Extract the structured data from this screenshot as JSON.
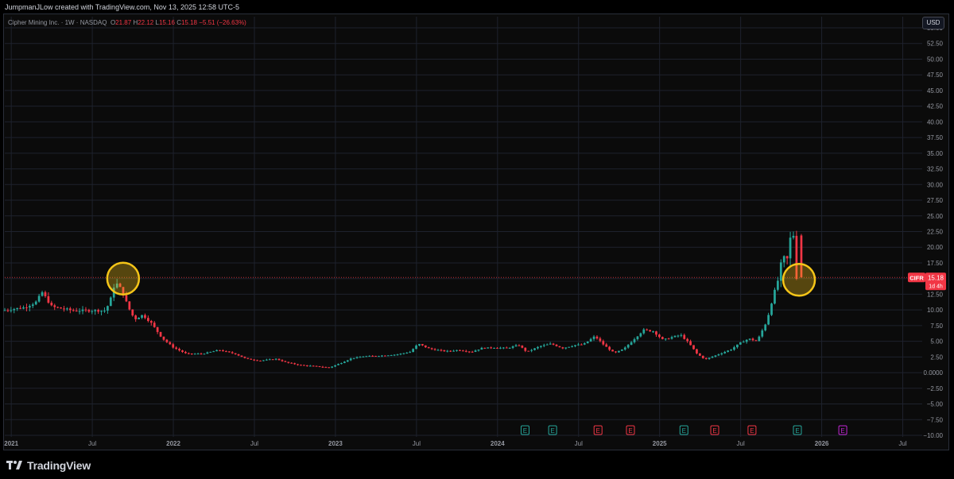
{
  "header": {
    "credit": "JumpmanJLow created with TradingView.com, Nov 13, 2025 12:58 UTC-5"
  },
  "legend": {
    "title": "Cipher Mining Inc. · 1W · NASDAQ",
    "open_label": "O",
    "open": "21.87",
    "high_label": "H",
    "high": "22.12",
    "low_label": "L",
    "low": "15.16",
    "close_label": "C",
    "close": "15.18",
    "change": "−5.51 (−26.63%)"
  },
  "currency_button": "USD",
  "price_tag": {
    "symbol": "CIFR",
    "price": "15.18",
    "countdown": "1d 4h"
  },
  "footer": {
    "brand": "TradingView"
  },
  "colors": {
    "up": "#26a69a",
    "down": "#f23645",
    "highlight": "#f5c518",
    "grid": "#1e222d"
  },
  "chart_data": {
    "type": "candlestick",
    "ylim": [
      -10,
      55
    ],
    "y_ticks": [
      "−10.00",
      "−7.50",
      "−5.00",
      "−2.50",
      "0.0000",
      "2.50",
      "5.00",
      "7.50",
      "10.00",
      "12.50",
      "15.00",
      "17.50",
      "20.00",
      "22.50",
      "25.00",
      "27.50",
      "30.00",
      "32.50",
      "35.00",
      "37.50",
      "40.00",
      "42.50",
      "45.00",
      "47.50",
      "50.00",
      "52.50",
      "55.00"
    ],
    "x_ticks": [
      {
        "label": "2021",
        "t": 2021.0,
        "bold": true
      },
      {
        "label": "Jul",
        "t": 2021.5,
        "bold": false
      },
      {
        "label": "2022",
        "t": 2022.0,
        "bold": true
      },
      {
        "label": "Jul",
        "t": 2022.5,
        "bold": false
      },
      {
        "label": "2023",
        "t": 2023.0,
        "bold": true
      },
      {
        "label": "Jul",
        "t": 2023.5,
        "bold": false
      },
      {
        "label": "2024",
        "t": 2024.0,
        "bold": true
      },
      {
        "label": "Jul",
        "t": 2024.5,
        "bold": false
      },
      {
        "label": "2025",
        "t": 2025.0,
        "bold": true
      },
      {
        "label": "Jul",
        "t": 2025.5,
        "bold": false
      },
      {
        "label": "2026",
        "t": 2026.0,
        "bold": true
      },
      {
        "label": "Jul",
        "t": 2026.5,
        "bold": false
      }
    ],
    "current_price": 15.18,
    "path": [
      [
        2020.96,
        9.9
      ],
      [
        2021.1,
        10.4
      ],
      [
        2021.17,
        11.2
      ],
      [
        2021.21,
        12.8
      ],
      [
        2021.27,
        10.5
      ],
      [
        2021.4,
        9.9
      ],
      [
        2021.6,
        9.9
      ],
      [
        2021.63,
        11.5
      ],
      [
        2021.66,
        14.5
      ],
      [
        2021.7,
        13.2
      ],
      [
        2021.74,
        10.5
      ],
      [
        2021.78,
        8.5
      ],
      [
        2021.83,
        9.2
      ],
      [
        2021.88,
        8.0
      ],
      [
        2021.95,
        5.5
      ],
      [
        2022.02,
        4.0
      ],
      [
        2022.1,
        3.0
      ],
      [
        2022.2,
        3.0
      ],
      [
        2022.3,
        3.6
      ],
      [
        2022.4,
        3.0
      ],
      [
        2022.47,
        2.2
      ],
      [
        2022.55,
        1.9
      ],
      [
        2022.65,
        2.2
      ],
      [
        2022.72,
        1.6
      ],
      [
        2022.8,
        1.2
      ],
      [
        2022.9,
        1.0
      ],
      [
        2022.98,
        0.8
      ],
      [
        2023.05,
        1.5
      ],
      [
        2023.12,
        2.3
      ],
      [
        2023.2,
        2.6
      ],
      [
        2023.3,
        2.7
      ],
      [
        2023.4,
        2.9
      ],
      [
        2023.48,
        3.3
      ],
      [
        2023.53,
        4.6
      ],
      [
        2023.6,
        3.8
      ],
      [
        2023.7,
        3.4
      ],
      [
        2023.78,
        3.6
      ],
      [
        2023.86,
        3.3
      ],
      [
        2023.92,
        3.9
      ],
      [
        2024.0,
        4.0
      ],
      [
        2024.08,
        3.9
      ],
      [
        2024.15,
        4.4
      ],
      [
        2024.2,
        3.3
      ],
      [
        2024.28,
        4.2
      ],
      [
        2024.35,
        4.6
      ],
      [
        2024.42,
        3.9
      ],
      [
        2024.5,
        4.4
      ],
      [
        2024.55,
        4.5
      ],
      [
        2024.62,
        5.8
      ],
      [
        2024.68,
        4.3
      ],
      [
        2024.74,
        3.1
      ],
      [
        2024.8,
        3.8
      ],
      [
        2024.86,
        5.3
      ],
      [
        2024.92,
        6.8
      ],
      [
        2024.98,
        6.6
      ],
      [
        2025.04,
        5.2
      ],
      [
        2025.1,
        5.7
      ],
      [
        2025.15,
        6.0
      ],
      [
        2025.2,
        4.7
      ],
      [
        2025.25,
        3.0
      ],
      [
        2025.3,
        2.1
      ],
      [
        2025.38,
        2.9
      ],
      [
        2025.46,
        3.7
      ],
      [
        2025.52,
        4.8
      ],
      [
        2025.57,
        5.4
      ],
      [
        2025.62,
        5.0
      ],
      [
        2025.68,
        8.2
      ],
      [
        2025.72,
        12.2
      ],
      [
        2025.75,
        14.8
      ],
      [
        2025.78,
        19.0
      ],
      [
        2025.8,
        17.0
      ],
      [
        2025.82,
        20.6
      ],
      [
        2025.835,
        22.8
      ],
      [
        2025.845,
        21.9
      ],
      [
        2025.855,
        15.18
      ]
    ],
    "earnings_markers": [
      {
        "t": 2024.17,
        "color": "#26a69a"
      },
      {
        "t": 2024.34,
        "color": "#26a69a"
      },
      {
        "t": 2024.62,
        "color": "#f23645"
      },
      {
        "t": 2024.82,
        "color": "#f23645"
      },
      {
        "t": 2025.15,
        "color": "#26a69a"
      },
      {
        "t": 2025.34,
        "color": "#f23645"
      },
      {
        "t": 2025.57,
        "color": "#f23645"
      },
      {
        "t": 2025.85,
        "color": "#26a69a"
      },
      {
        "t": 2026.13,
        "color": "#c026d3"
      }
    ],
    "earnings_label": "E",
    "highlights": [
      {
        "t": 2021.69,
        "price": 15.0
      },
      {
        "t": 2025.86,
        "price": 14.8
      }
    ]
  }
}
